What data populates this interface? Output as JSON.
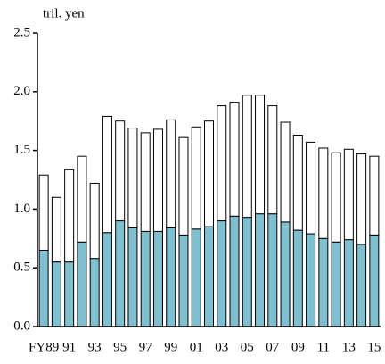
{
  "chart_data": {
    "type": "stacked_bar",
    "y_axis_label": "tril. yen",
    "categories": [
      "FY89",
      null,
      "91",
      null,
      "93",
      null,
      "95",
      null,
      "97",
      null,
      "99",
      null,
      "01",
      null,
      "03",
      null,
      "05",
      null,
      "07",
      null,
      "09",
      null,
      "11",
      null,
      "13",
      null,
      "15"
    ],
    "series": [
      {
        "color": "#7fbfcf",
        "values": [
          0.65,
          0.55,
          0.55,
          0.72,
          0.58,
          0.8,
          0.9,
          0.84,
          0.81,
          0.81,
          0.84,
          0.78,
          0.83,
          0.85,
          0.9,
          0.94,
          0.93,
          0.96,
          0.96,
          0.89,
          0.82,
          0.79,
          0.75,
          0.72,
          0.74,
          0.7,
          0.78
        ]
      },
      {
        "color": "#ffffff",
        "values": [
          0.64,
          0.55,
          0.79,
          0.73,
          0.64,
          0.99,
          0.85,
          0.85,
          0.84,
          0.87,
          0.92,
          0.83,
          0.87,
          0.9,
          0.98,
          0.97,
          1.04,
          1.01,
          0.92,
          0.85,
          0.81,
          0.78,
          0.77,
          0.76,
          0.77,
          0.77,
          0.67
        ]
      }
    ],
    "ylim": [
      0,
      2.5
    ],
    "yticks": [
      {
        "value": 0,
        "label": "0.0"
      },
      {
        "value": 0.5,
        "label": "0.5"
      },
      {
        "value": 1,
        "label": "1.0"
      },
      {
        "value": 1.5,
        "label": "1.5"
      },
      {
        "value": 2,
        "label": "2.0"
      },
      {
        "value": 2.5,
        "label": "2.5"
      }
    ]
  }
}
